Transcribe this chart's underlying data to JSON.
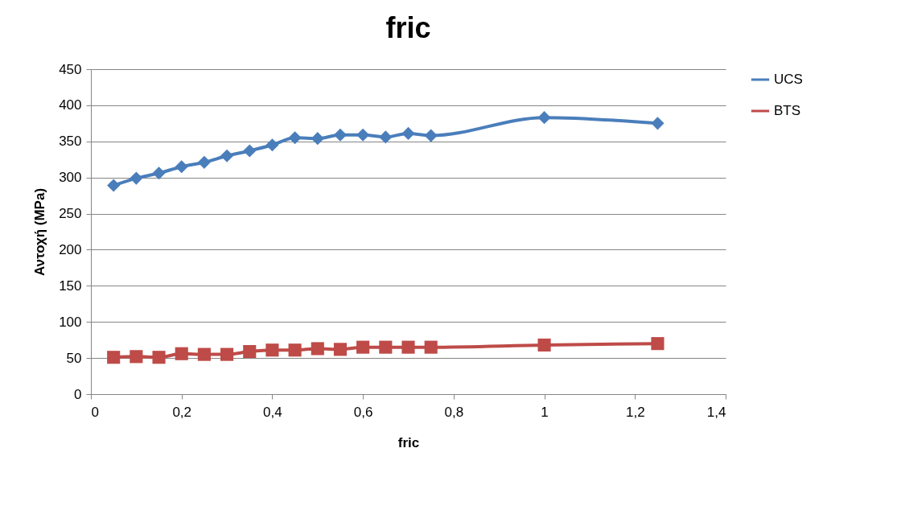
{
  "chart_data": {
    "type": "line",
    "title": "fric",
    "xlabel": "fric",
    "ylabel": "Αντοχή (MPa)",
    "x": [
      0.05,
      0.1,
      0.15,
      0.2,
      0.25,
      0.3,
      0.35,
      0.4,
      0.45,
      0.5,
      0.55,
      0.6,
      0.65,
      0.7,
      0.75,
      1,
      1.25
    ],
    "series": [
      {
        "name": "UCS",
        "color": "#4a7ebb",
        "marker": "diamond",
        "values": [
          289,
          299,
          306,
          315,
          321,
          330,
          337,
          345,
          355,
          354,
          359,
          359,
          356,
          361,
          358,
          383,
          375
        ]
      },
      {
        "name": "BTS",
        "color": "#be4b48",
        "marker": "square",
        "values": [
          51,
          52,
          51,
          56,
          55,
          55,
          59,
          61,
          61,
          63,
          62,
          65,
          65,
          65,
          65,
          68,
          70
        ]
      }
    ],
    "xlim": [
      0,
      1.4
    ],
    "xticks": [
      0,
      {
        "value": 0.2,
        "label": "0,2"
      },
      {
        "value": 0.4,
        "label": "0,4"
      },
      {
        "value": 0.6,
        "label": "0,6"
      },
      {
        "value": 0.8,
        "label": "0,8"
      },
      1,
      {
        "value": 1.2,
        "label": "1,2"
      },
      {
        "value": 1.4,
        "label": "1,4"
      }
    ],
    "ylim": [
      0,
      450
    ],
    "yticks": [
      0,
      50,
      100,
      150,
      200,
      250,
      300,
      350,
      400,
      450
    ],
    "grid": "y",
    "legend": "right",
    "line_style": "solid"
  }
}
